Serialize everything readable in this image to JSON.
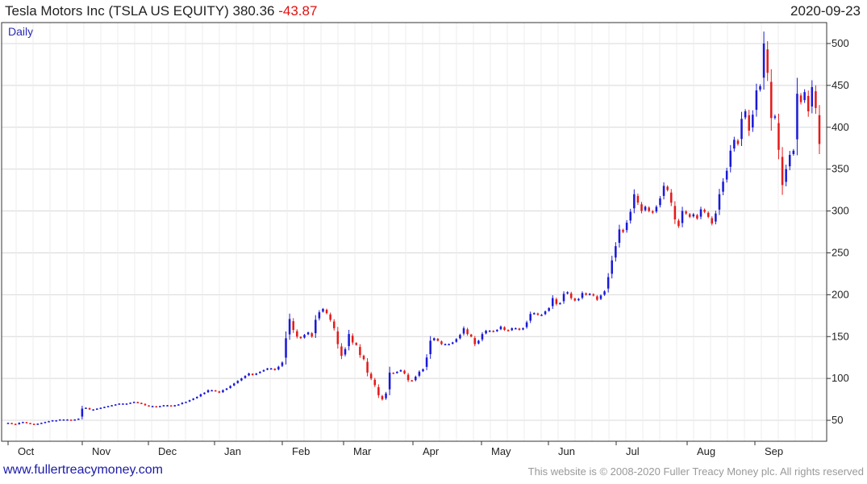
{
  "header": {
    "name": "Tesla Motors Inc (TSLA US EQUITY)",
    "last": "380.36",
    "change": "-43.87",
    "date": "2020-09-23",
    "frequency": "Daily"
  },
  "footer": {
    "link": "www.fullertreacymoney.com",
    "copyright": "This website is © 2008-2020 Fuller Treacy Money plc. All rights reserved"
  },
  "colors": {
    "up": "#1a1ad8",
    "down": "#e41b1b",
    "grid": "#d8d8d8",
    "frame": "#333333"
  },
  "chart_data": {
    "type": "candlestick",
    "ylim": [
      25,
      525
    ],
    "y_ticks": [
      50,
      100,
      150,
      200,
      250,
      300,
      350,
      400,
      450,
      500
    ],
    "x_ticks": [
      "Oct",
      "Nov",
      "Dec",
      "Jan",
      "Feb",
      "Mar",
      "Apr",
      "May",
      "Jun",
      "Jul",
      "Aug",
      "Sep"
    ],
    "grid": true,
    "closes": [
      47,
      46,
      45,
      47,
      48,
      47,
      46,
      45,
      46,
      47,
      48,
      49,
      50,
      50,
      51,
      51,
      51,
      50,
      51,
      52,
      64,
      65,
      63,
      63,
      64,
      65,
      66,
      67,
      68,
      69,
      70,
      70,
      70,
      71,
      72,
      71,
      70,
      68,
      67,
      67,
      66,
      67,
      68,
      68,
      67,
      68,
      69,
      71,
      72,
      74,
      76,
      78,
      81,
      83,
      86,
      86,
      85,
      83,
      86,
      88,
      91,
      94,
      97,
      100,
      103,
      106,
      104,
      106,
      108,
      110,
      112,
      112,
      110,
      114,
      119,
      148,
      171,
      158,
      150,
      148,
      152,
      155,
      150,
      170,
      179,
      183,
      178,
      170,
      160,
      141,
      127,
      135,
      153,
      143,
      140,
      128,
      123,
      107,
      100,
      92,
      80,
      75,
      82,
      107,
      106,
      108,
      110,
      106,
      98,
      97,
      102,
      108,
      111,
      125,
      145,
      148,
      145,
      141,
      141,
      141,
      143,
      147,
      152,
      160,
      153,
      150,
      141,
      145,
      153,
      157,
      157,
      156,
      158,
      162,
      158,
      157,
      160,
      160,
      158,
      160,
      167,
      177,
      178,
      176,
      176,
      180,
      184,
      196,
      189,
      190,
      201,
      203,
      196,
      193,
      195,
      202,
      200,
      201,
      199,
      194,
      199,
      204,
      221,
      241,
      258,
      278,
      275,
      286,
      299,
      320,
      310,
      300,
      305,
      300,
      298,
      305,
      315,
      330,
      325,
      310,
      290,
      282,
      300,
      297,
      293,
      296,
      291,
      302,
      299,
      293,
      285,
      297,
      320,
      335,
      348,
      372,
      385,
      380,
      410,
      419,
      396,
      415,
      444,
      449,
      500,
      465,
      411,
      413,
      373,
      331,
      350,
      367,
      372,
      440,
      430,
      442,
      419,
      448,
      423,
      380
    ],
    "series_name": "TSLA"
  }
}
